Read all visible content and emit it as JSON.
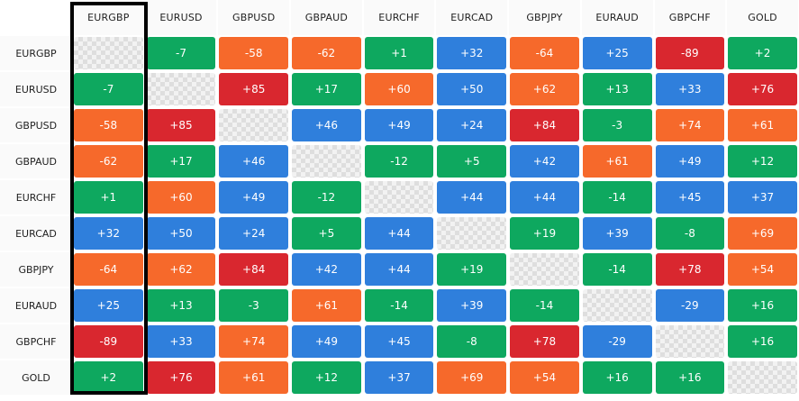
{
  "symbols": [
    "EURGBP",
    "EURUSD",
    "GBPUSD",
    "GBPAUD",
    "EURCHF",
    "EURCAD",
    "GBPJPY",
    "EURAUD",
    "GBPCHF",
    "GOLD"
  ],
  "selected_column": "EURGBP",
  "colors": {
    "green": "#0ea85f",
    "orange": "#f6692b",
    "blue": "#2f7fdc",
    "red": "#d9272f"
  },
  "rows": [
    {
      "label": "EURGBP",
      "cells": [
        {
          "v": null,
          "c": "empty"
        },
        {
          "v": "-7",
          "c": "green"
        },
        {
          "v": "-58",
          "c": "orange"
        },
        {
          "v": "-62",
          "c": "orange"
        },
        {
          "v": "+1",
          "c": "green"
        },
        {
          "v": "+32",
          "c": "blue"
        },
        {
          "v": "-64",
          "c": "orange"
        },
        {
          "v": "+25",
          "c": "blue"
        },
        {
          "v": "-89",
          "c": "red"
        },
        {
          "v": "+2",
          "c": "green"
        }
      ]
    },
    {
      "label": "EURUSD",
      "cells": [
        {
          "v": "-7",
          "c": "green"
        },
        {
          "v": null,
          "c": "empty"
        },
        {
          "v": "+85",
          "c": "red"
        },
        {
          "v": "+17",
          "c": "green"
        },
        {
          "v": "+60",
          "c": "orange"
        },
        {
          "v": "+50",
          "c": "blue"
        },
        {
          "v": "+62",
          "c": "orange"
        },
        {
          "v": "+13",
          "c": "green"
        },
        {
          "v": "+33",
          "c": "blue"
        },
        {
          "v": "+76",
          "c": "red"
        }
      ]
    },
    {
      "label": "GBPUSD",
      "cells": [
        {
          "v": "-58",
          "c": "orange"
        },
        {
          "v": "+85",
          "c": "red"
        },
        {
          "v": null,
          "c": "empty"
        },
        {
          "v": "+46",
          "c": "blue"
        },
        {
          "v": "+49",
          "c": "blue"
        },
        {
          "v": "+24",
          "c": "blue"
        },
        {
          "v": "+84",
          "c": "red"
        },
        {
          "v": "-3",
          "c": "green"
        },
        {
          "v": "+74",
          "c": "orange"
        },
        {
          "v": "+61",
          "c": "orange"
        }
      ]
    },
    {
      "label": "GBPAUD",
      "cells": [
        {
          "v": "-62",
          "c": "orange"
        },
        {
          "v": "+17",
          "c": "green"
        },
        {
          "v": "+46",
          "c": "blue"
        },
        {
          "v": null,
          "c": "empty"
        },
        {
          "v": "-12",
          "c": "green"
        },
        {
          "v": "+5",
          "c": "green"
        },
        {
          "v": "+42",
          "c": "blue"
        },
        {
          "v": "+61",
          "c": "orange"
        },
        {
          "v": "+49",
          "c": "blue"
        },
        {
          "v": "+12",
          "c": "green"
        }
      ]
    },
    {
      "label": "EURCHF",
      "cells": [
        {
          "v": "+1",
          "c": "green"
        },
        {
          "v": "+60",
          "c": "orange"
        },
        {
          "v": "+49",
          "c": "blue"
        },
        {
          "v": "-12",
          "c": "green"
        },
        {
          "v": null,
          "c": "empty"
        },
        {
          "v": "+44",
          "c": "blue"
        },
        {
          "v": "+44",
          "c": "blue"
        },
        {
          "v": "-14",
          "c": "green"
        },
        {
          "v": "+45",
          "c": "blue"
        },
        {
          "v": "+37",
          "c": "blue"
        }
      ]
    },
    {
      "label": "EURCAD",
      "cells": [
        {
          "v": "+32",
          "c": "blue"
        },
        {
          "v": "+50",
          "c": "blue"
        },
        {
          "v": "+24",
          "c": "blue"
        },
        {
          "v": "+5",
          "c": "green"
        },
        {
          "v": "+44",
          "c": "blue"
        },
        {
          "v": null,
          "c": "empty"
        },
        {
          "v": "+19",
          "c": "green"
        },
        {
          "v": "+39",
          "c": "blue"
        },
        {
          "v": "-8",
          "c": "green"
        },
        {
          "v": "+69",
          "c": "orange"
        }
      ]
    },
    {
      "label": "GBPJPY",
      "cells": [
        {
          "v": "-64",
          "c": "orange"
        },
        {
          "v": "+62",
          "c": "orange"
        },
        {
          "v": "+84",
          "c": "red"
        },
        {
          "v": "+42",
          "c": "blue"
        },
        {
          "v": "+44",
          "c": "blue"
        },
        {
          "v": "+19",
          "c": "green"
        },
        {
          "v": null,
          "c": "empty"
        },
        {
          "v": "-14",
          "c": "green"
        },
        {
          "v": "+78",
          "c": "red"
        },
        {
          "v": "+54",
          "c": "orange"
        }
      ]
    },
    {
      "label": "EURAUD",
      "cells": [
        {
          "v": "+25",
          "c": "blue"
        },
        {
          "v": "+13",
          "c": "green"
        },
        {
          "v": "-3",
          "c": "green"
        },
        {
          "v": "+61",
          "c": "orange"
        },
        {
          "v": "-14",
          "c": "green"
        },
        {
          "v": "+39",
          "c": "blue"
        },
        {
          "v": "-14",
          "c": "green"
        },
        {
          "v": null,
          "c": "empty"
        },
        {
          "v": "-29",
          "c": "blue"
        },
        {
          "v": "+16",
          "c": "green"
        }
      ]
    },
    {
      "label": "GBPCHF",
      "cells": [
        {
          "v": "-89",
          "c": "red"
        },
        {
          "v": "+33",
          "c": "blue"
        },
        {
          "v": "+74",
          "c": "orange"
        },
        {
          "v": "+49",
          "c": "blue"
        },
        {
          "v": "+45",
          "c": "blue"
        },
        {
          "v": "-8",
          "c": "green"
        },
        {
          "v": "+78",
          "c": "red"
        },
        {
          "v": "-29",
          "c": "blue"
        },
        {
          "v": null,
          "c": "empty"
        },
        {
          "v": "+16",
          "c": "green"
        }
      ]
    },
    {
      "label": "GOLD",
      "cells": [
        {
          "v": "+2",
          "c": "green"
        },
        {
          "v": "+76",
          "c": "red"
        },
        {
          "v": "+61",
          "c": "orange"
        },
        {
          "v": "+12",
          "c": "green"
        },
        {
          "v": "+37",
          "c": "blue"
        },
        {
          "v": "+69",
          "c": "orange"
        },
        {
          "v": "+54",
          "c": "orange"
        },
        {
          "v": "+16",
          "c": "green"
        },
        {
          "v": "+16",
          "c": "green"
        },
        {
          "v": null,
          "c": "empty"
        }
      ]
    }
  ]
}
